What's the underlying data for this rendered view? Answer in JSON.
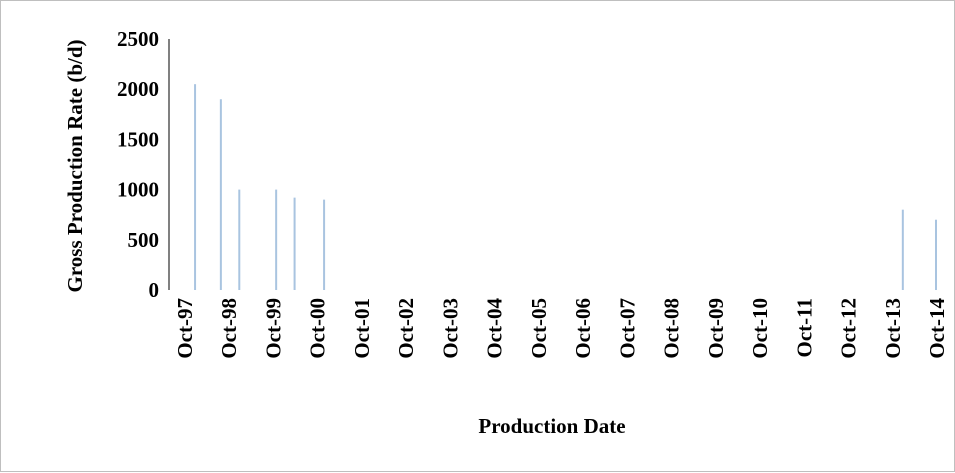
{
  "chart_data": {
    "type": "bar",
    "title": "",
    "xlabel": "Production Date",
    "ylabel": "Gross Production Rate (b/d)",
    "ylim": [
      0,
      2500
    ],
    "yticks": [
      0,
      500,
      1000,
      1500,
      2000,
      2500
    ],
    "y_tick_labels": [
      "0",
      "500",
      "1000",
      "1500",
      "2000",
      "2500"
    ],
    "xlim": [
      "1997-10",
      "2014-10"
    ],
    "x_tick_labels": [
      "Oct-97",
      "Oct-98",
      "Oct-99",
      "Oct-00",
      "Oct-01",
      "Oct-02",
      "Oct-03",
      "Oct-04",
      "Oct-05",
      "Oct-06",
      "Oct-07",
      "Oct-08",
      "Oct-09",
      "Oct-10",
      "Oct-11",
      "Oct-12",
      "Oct-13",
      "Oct-14"
    ],
    "grid": false,
    "legend": false,
    "bar_color": "#a9c4e0",
    "points": [
      {
        "date": "1998-01",
        "value": 2050
      },
      {
        "date": "1998-08",
        "value": 1900
      },
      {
        "date": "1999-01",
        "value": 1000
      },
      {
        "date": "1999-11",
        "value": 1000
      },
      {
        "date": "2000-04",
        "value": 920
      },
      {
        "date": "2000-12",
        "value": 900
      },
      {
        "date": "2014-01",
        "value": 800
      },
      {
        "date": "2014-10",
        "value": 700
      }
    ]
  }
}
